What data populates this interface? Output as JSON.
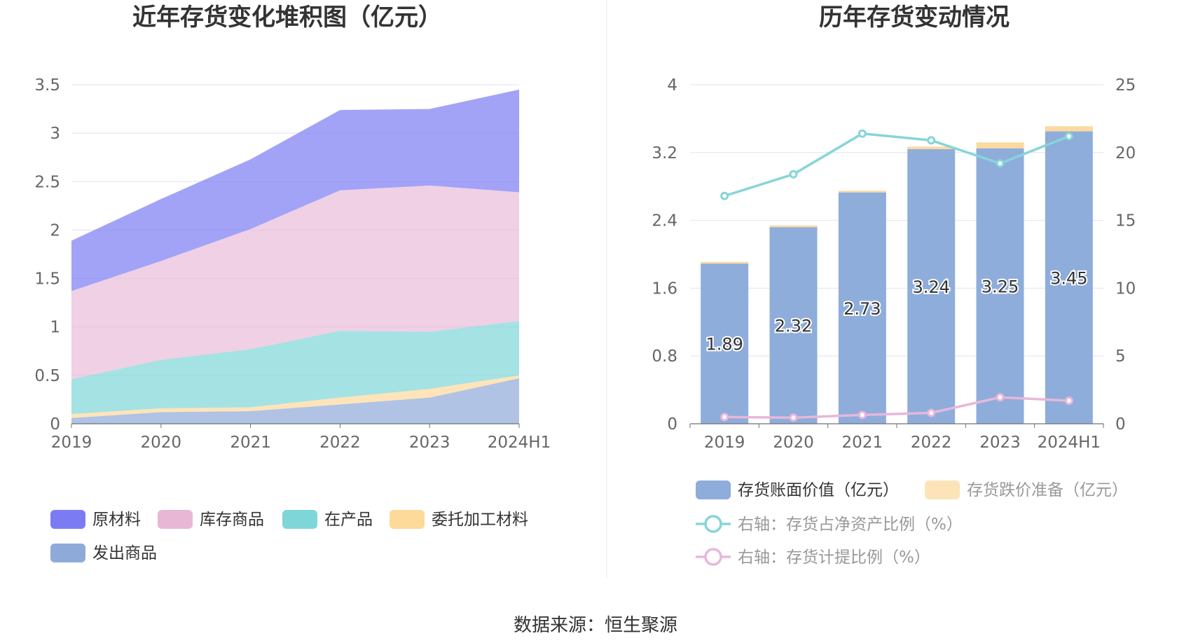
{
  "source_text": "数据来源：恒生聚源",
  "chart_data": [
    {
      "type": "area",
      "stacked": true,
      "title": "近年存货变化堆积图（亿元）",
      "categories": [
        "2019",
        "2020",
        "2021",
        "2022",
        "2023",
        "2024H1"
      ],
      "ylim": [
        0,
        3.5
      ],
      "yticks": [
        "0",
        "0.5",
        "1",
        "1.5",
        "2",
        "2.5",
        "3",
        "3.5"
      ],
      "grid": true,
      "legend_position": "bottom",
      "series": [
        {
          "name": "发出商品",
          "color": "#8eaad9",
          "values": [
            0.06,
            0.12,
            0.13,
            0.2,
            0.27,
            0.47
          ]
        },
        {
          "name": "委托加工材料",
          "color": "#fdd99a",
          "values": [
            0.04,
            0.04,
            0.04,
            0.07,
            0.09,
            0.03
          ]
        },
        {
          "name": "在产品",
          "color": "#7fd6d9",
          "values": [
            0.36,
            0.5,
            0.6,
            0.69,
            0.59,
            0.56
          ]
        },
        {
          "name": "库存商品",
          "color": "#e8b7d6",
          "values": [
            0.91,
            1.02,
            1.24,
            1.45,
            1.51,
            1.33
          ]
        },
        {
          "name": "原材料",
          "color": "#7b7cf3",
          "values": [
            0.52,
            0.64,
            0.72,
            0.83,
            0.79,
            1.06
          ]
        }
      ],
      "legend_order": [
        "原材料",
        "库存商品",
        "在产品",
        "委托加工材料",
        "发出商品"
      ]
    },
    {
      "type": "bar",
      "title": "历年存货变动情况",
      "categories": [
        "2019",
        "2020",
        "2021",
        "2022",
        "2023",
        "2024H1"
      ],
      "ylim": [
        0,
        4
      ],
      "yticks": [
        "0",
        "0.8",
        "1.6",
        "2.4",
        "3.2",
        "4"
      ],
      "y2lim": [
        0,
        25
      ],
      "y2ticks": [
        "0",
        "5",
        "10",
        "15",
        "20",
        "25"
      ],
      "grid": true,
      "legend_position": "bottom",
      "series": [
        {
          "name": "存货账面价值（亿元）",
          "type": "bar",
          "color": "#8eaddb",
          "values": [
            1.89,
            2.32,
            2.73,
            3.24,
            3.25,
            3.45
          ],
          "labels": [
            "1.89",
            "2.32",
            "2.73",
            "3.24",
            "3.25",
            "3.45"
          ]
        },
        {
          "name": "存货跌价准备（亿元）",
          "type": "bar",
          "color": "#fde3b8",
          "values": [
            0.02,
            0.02,
            0.02,
            0.03,
            0.07,
            0.06
          ]
        },
        {
          "name": "右轴：存货占净资产比例（%）",
          "type": "line",
          "axis": "right",
          "color": "#86d5d8",
          "values": [
            16.8,
            18.4,
            21.4,
            20.9,
            19.2,
            21.2
          ]
        },
        {
          "name": "右轴：存货计提比例（%）",
          "type": "line",
          "axis": "right",
          "color": "#e8b7d9",
          "values": [
            0.5,
            0.45,
            0.65,
            0.8,
            1.95,
            1.7
          ]
        }
      ]
    }
  ]
}
